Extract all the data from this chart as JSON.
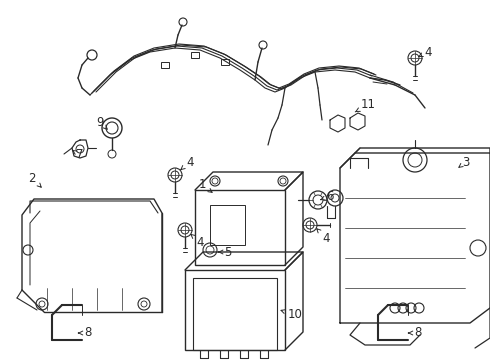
{
  "bg_color": "#ffffff",
  "line_color": "#2a2a2a",
  "label_color": "#2a2a2a",
  "label_fontsize": 8.5,
  "fig_width": 4.9,
  "fig_height": 3.6,
  "dpi": 100
}
